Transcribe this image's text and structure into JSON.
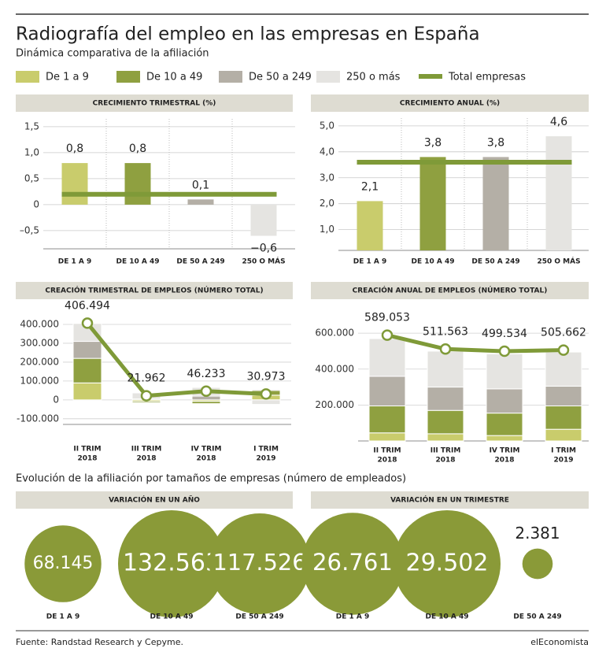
{
  "title": "Radiografía del empleo en las empresas en España",
  "subtitle": "Dinámica comparativa de la afiliación",
  "legend": [
    {
      "name": "De 1 a 9",
      "color": "#c9cc6c"
    },
    {
      "name": "De 10 a 49",
      "color": "#8fa040"
    },
    {
      "name": "De 50 a 249",
      "color": "#b4afa6"
    },
    {
      "name": "250 o más",
      "color": "#e5e4e1"
    },
    {
      "name": "Total empresas",
      "color": "#7f9a38"
    }
  ],
  "section_title": "Evolución de la afiliación por tamaños de empresas (número de empleados)",
  "source": "Fuente: Randstad Research y Cepyme.",
  "brand": "elEconomista",
  "chart_data": [
    {
      "type": "bar",
      "title": "CRECIMIENTO TRIMESTRAL (%)",
      "categories": [
        "DE 1 A 9",
        "DE 10 A 49",
        "DE 50 A 249",
        "250 O MÁS"
      ],
      "values": [
        0.8,
        0.8,
        0.1,
        -0.6
      ],
      "value_labels": [
        "0,8",
        "0,8",
        "0,1",
        "−0,6"
      ],
      "total": 0.2,
      "ylim": [
        -0.85,
        1.65
      ],
      "yticks": [
        {
          "value": -0.5,
          "label": "–0,5"
        },
        0,
        {
          "value": 0.5,
          "label": "0,5"
        },
        {
          "value": 1.0,
          "label": "1,0"
        },
        {
          "value": 1.5,
          "label": "1,5"
        }
      ]
    },
    {
      "type": "bar",
      "title": "CRECIMIENTO ANUAL (%)",
      "categories": [
        "DE 1 A 9",
        "DE 10 A 49",
        "DE 50 A 249",
        "250 O MÁS"
      ],
      "values": [
        2.1,
        3.8,
        3.8,
        4.6
      ],
      "value_labels": [
        "2,1",
        "3,8",
        "3,8",
        "4,6"
      ],
      "total": 3.6,
      "ylim": [
        0.2,
        5.3
      ],
      "yticks": [
        {
          "value": 1.0,
          "label": "1,0"
        },
        {
          "value": 2.0,
          "label": "2,0"
        },
        {
          "value": 3.0,
          "label": "3,0"
        },
        {
          "value": 4.0,
          "label": "4,0"
        },
        {
          "value": 5.0,
          "label": "5,0"
        }
      ]
    },
    {
      "type": "stacked_bar",
      "title": "CREACIÓN TRIMESTRAL DE EMPLEOS (NÚMERO TOTAL)",
      "categories": [
        [
          "II TRIM",
          "2018"
        ],
        [
          "III TRIM",
          "2018"
        ],
        [
          "IV TRIM",
          "2018"
        ],
        [
          "I TRIM",
          "2019"
        ]
      ],
      "series": [
        {
          "values": [
            90000,
            -8000,
            -8000,
            25000
          ]
        },
        {
          "values": [
            130000,
            -7000,
            -12000,
            25000
          ]
        },
        {
          "values": [
            90000,
            5000,
            20000,
            5000
          ]
        },
        {
          "values": [
            95000,
            32000,
            46000,
            -24000
          ]
        }
      ],
      "line": {
        "values": [
          406494,
          21962,
          46233,
          30973
        ],
        "value_labels": [
          "406.494",
          "21.962",
          "46.233",
          "30.973"
        ]
      },
      "ylim": [
        -130000,
        450000
      ],
      "yticks": [
        {
          "value": -100000,
          "label": "-100.000"
        },
        0,
        {
          "value": 100000,
          "label": "100.000"
        },
        {
          "value": 200000,
          "label": "200.000"
        },
        {
          "value": 300000,
          "label": "300.000"
        },
        {
          "value": 400000,
          "label": "400.000"
        }
      ]
    },
    {
      "type": "stacked_bar",
      "title": "CREACIÓN ANUAL DE EMPLEOS (NÚMERO TOTAL)",
      "categories": [
        [
          "II TRIM",
          "2018"
        ],
        [
          "III TRIM",
          "2018"
        ],
        [
          "IV TRIM",
          "2018"
        ],
        [
          "I TRIM",
          "2019"
        ]
      ],
      "series": [
        {
          "values": [
            45000,
            40000,
            30000,
            65000
          ]
        },
        {
          "values": [
            150000,
            130000,
            125000,
            130000
          ]
        },
        {
          "values": [
            165000,
            130000,
            135000,
            110000
          ]
        },
        {
          "values": [
            210000,
            200000,
            195000,
            190000
          ]
        }
      ],
      "line": {
        "values": [
          589053,
          511563,
          499534,
          505662
        ],
        "value_labels": [
          "589.053",
          "511.563",
          "499.534",
          "505.662"
        ]
      },
      "ylim": [
        0,
        640000
      ],
      "yticks": [
        {
          "value": 200000,
          "label": "200.000"
        },
        {
          "value": 400000,
          "label": "400.000"
        },
        {
          "value": 600000,
          "label": "600.000"
        }
      ]
    },
    {
      "type": "bubble",
      "title": "VARIACIÓN EN UN AÑO",
      "categories": [
        "DE 1 A 9",
        "DE 10 A 49",
        "DE 50 A 249"
      ],
      "values": [
        68145,
        132563,
        117526
      ],
      "value_labels": [
        "68.145",
        "132.563",
        "117.526"
      ]
    },
    {
      "type": "bubble",
      "title": "VARIACIÓN EN UN TRIMESTRE",
      "categories": [
        "DE 1 A 9",
        "DE 10 A 49",
        "DE 50 A 249"
      ],
      "values": [
        26761,
        29502,
        2381
      ],
      "value_labels": [
        "26.761",
        "29.502",
        "2.381"
      ]
    }
  ]
}
